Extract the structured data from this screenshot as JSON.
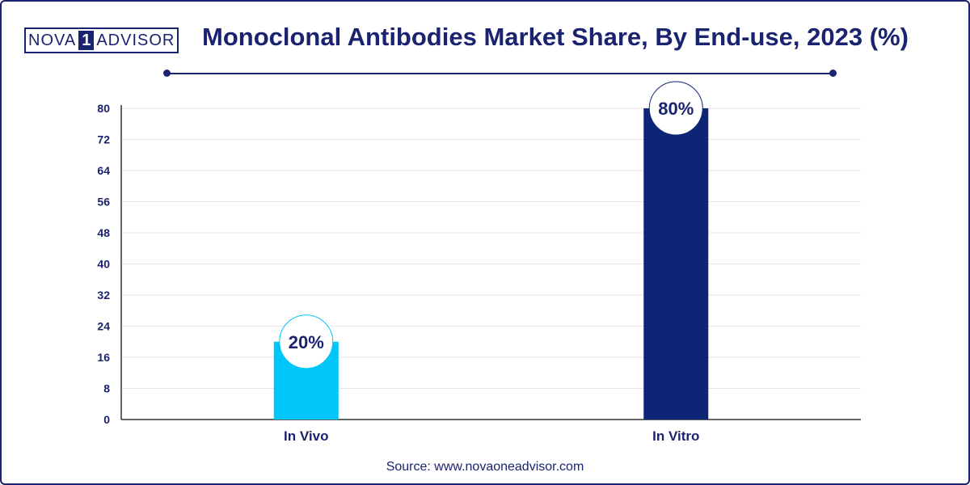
{
  "header": {
    "logo_left": "NOVA",
    "logo_mid": "1",
    "logo_right": "ADVISOR",
    "title": "Monoclonal Antibodies Market Share, By End-use, 2023 (%)"
  },
  "footer": {
    "source": "Source: www.novaoneadvisor.com"
  },
  "colors": {
    "in_vivo": "#00c5f8",
    "in_vitro": "#0e2576",
    "text": "#1a2370",
    "grid": "#e6e6e6"
  },
  "chart_data": {
    "type": "bar",
    "categories": [
      "In Vivo",
      "In Vitro"
    ],
    "values": [
      20,
      80
    ],
    "data_labels": [
      "20%",
      "80%"
    ],
    "ylim": [
      0,
      80
    ],
    "yticks": [
      0,
      8,
      16,
      24,
      32,
      40,
      48,
      56,
      64,
      72,
      80
    ],
    "grid": true,
    "title": "Monoclonal Antibodies Market Share, By End-use, 2023 (%)",
    "xlabel": "",
    "ylabel": ""
  }
}
